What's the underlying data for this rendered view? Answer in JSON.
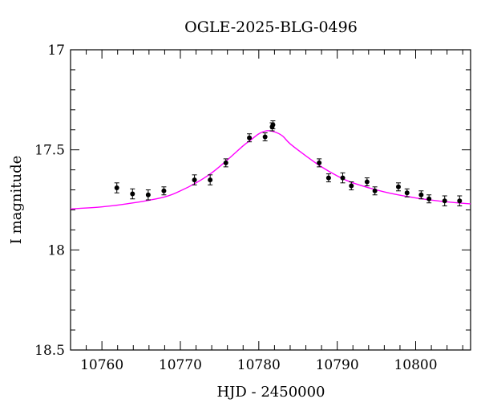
{
  "chart_data": {
    "type": "scatter",
    "title": "OGLE-2025-BLG-0496",
    "xlabel": "HJD - 2450000",
    "ylabel": "I magnitude",
    "xlim": [
      10756,
      10807
    ],
    "ylim": [
      18.5,
      17.0
    ],
    "y_inverted": true,
    "grid": false,
    "x_ticks": [
      10760,
      10770,
      10780,
      10790,
      10800
    ],
    "x_tick_labels": [
      "10760",
      "10770",
      "10780",
      "10790",
      "10800"
    ],
    "y_ticks": [
      17.0,
      17.5,
      18.0,
      18.5
    ],
    "y_tick_labels": [
      "17",
      "17.5",
      "18",
      "18.5"
    ],
    "colors": {
      "model": "#ff00ff",
      "points": "#000000"
    },
    "series": [
      {
        "kind": "points_with_errors",
        "x": [
          10761.9,
          10763.9,
          10765.9,
          10767.9,
          10771.8,
          10773.8,
          10775.8,
          10778.8,
          10780.8,
          10781.7,
          10781.8,
          10787.7,
          10788.9,
          10790.7,
          10791.8,
          10793.8,
          10794.8,
          10797.8,
          10798.9,
          10800.7,
          10801.7,
          10803.7,
          10805.6
        ],
        "y": [
          17.69,
          17.72,
          17.725,
          17.705,
          17.65,
          17.65,
          17.565,
          17.44,
          17.435,
          17.385,
          17.375,
          17.565,
          17.64,
          17.64,
          17.68,
          17.66,
          17.705,
          17.685,
          17.715,
          17.725,
          17.745,
          17.755,
          17.755
        ],
        "yerr": [
          0.025,
          0.025,
          0.025,
          0.02,
          0.025,
          0.025,
          0.02,
          0.02,
          0.02,
          0.02,
          0.02,
          0.02,
          0.02,
          0.025,
          0.02,
          0.02,
          0.02,
          0.02,
          0.02,
          0.02,
          0.02,
          0.025,
          0.025
        ]
      },
      {
        "kind": "model_curve",
        "x": [
          10756,
          10760,
          10764,
          10768,
          10770,
          10772,
          10774,
          10776,
          10778,
          10779,
          10780,
          10781,
          10782,
          10783,
          10784,
          10786,
          10788,
          10790,
          10792,
          10796,
          10800,
          10804,
          10807
        ],
        "y": [
          17.795,
          17.785,
          17.765,
          17.735,
          17.705,
          17.665,
          17.615,
          17.55,
          17.48,
          17.45,
          17.42,
          17.405,
          17.41,
          17.43,
          17.47,
          17.53,
          17.585,
          17.63,
          17.665,
          17.71,
          17.74,
          17.76,
          17.77
        ]
      }
    ]
  }
}
